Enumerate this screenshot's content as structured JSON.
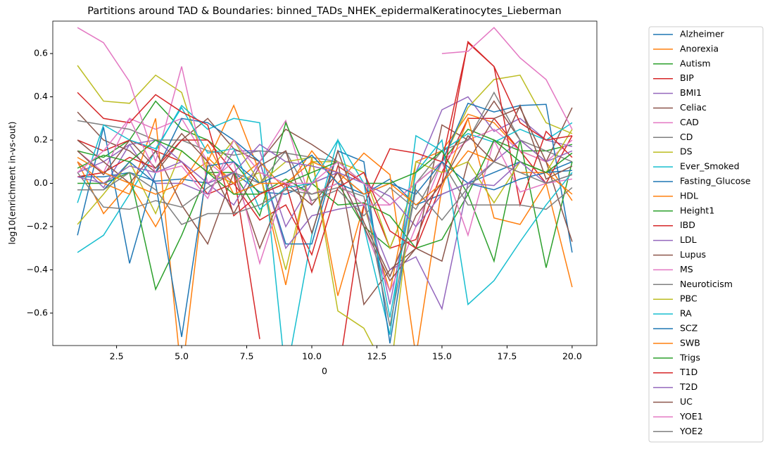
{
  "chart_data": {
    "type": "line",
    "title": "Partitions around TAD & Boundaries: binned_TADs_NHEK_epidermalKeratinocytes_Lieberman",
    "x_label": "0",
    "y_label": "log10(enrichment in-vs-out)",
    "x": [
      1,
      2,
      3,
      4,
      5,
      6,
      7,
      8,
      9,
      10,
      11,
      12,
      13,
      14,
      15,
      16,
      17,
      18,
      19,
      20
    ],
    "xlim": [
      0.05,
      20.95
    ],
    "xticks": [
      2.5,
      {
        "value": 5,
        "label": "5.0"
      },
      7.5,
      {
        "value": 10,
        "label": "10.0"
      },
      12.5,
      {
        "value": 15,
        "label": "15.0"
      },
      17.5,
      {
        "value": 20,
        "label": "20.0"
      }
    ],
    "ylim": [
      -0.75,
      0.75
    ],
    "yticks": [
      {
        "value": -0.6,
        "label": "−0.6"
      },
      {
        "value": -0.4,
        "label": "−0.4"
      },
      {
        "value": -0.2,
        "label": "−0.2"
      },
      {
        "value": 0,
        "label": "0.0"
      },
      0.2,
      0.4,
      0.6
    ],
    "grid": false,
    "legend": "outside right",
    "series": [
      {
        "name": "Alzheimer",
        "color": "#1f77b4",
        "values": [
          0.03,
          0.03,
          0.05,
          0.01,
          0.02,
          0.0,
          0.05,
          -0.04,
          -0.05,
          0.0,
          0.05,
          -0.05,
          0.02,
          -0.1,
          -0.05,
          0.0,
          0.05,
          0.1,
          0.05,
          0.1
        ]
      },
      {
        "name": "Anorexia",
        "color": "#ff7f0e",
        "values": [
          0.1,
          -0.14,
          0.0,
          -0.2,
          0.02,
          0.1,
          0.36,
          0.05,
          -0.47,
          0.12,
          -0.52,
          -0.1,
          -0.5,
          0.1,
          0.15,
          0.32,
          0.28,
          0.15,
          0.1,
          -0.08
        ]
      },
      {
        "name": "Autism",
        "color": "#2ca02c",
        "values": [
          0.15,
          0.12,
          0.2,
          0.38,
          0.25,
          0.2,
          0.1,
          -0.05,
          0.02,
          -0.05,
          0.0,
          -0.2,
          -0.3,
          0.0,
          0.1,
          0.25,
          0.2,
          0.15,
          0.15,
          0.18
        ]
      },
      {
        "name": "BIP",
        "color": "#d62728",
        "values": [
          0.2,
          0.15,
          0.2,
          0.15,
          0.1,
          -0.05,
          0.0,
          -0.17,
          -0.1,
          -0.33,
          0.08,
          0.0,
          -0.3,
          -0.26,
          0.05,
          0.3,
          0.3,
          0.15,
          0.0,
          0.22
        ]
      },
      {
        "name": "BMI1",
        "color": "#9467bd",
        "values": [
          0.1,
          -0.02,
          0.18,
          0.0,
          0.0,
          -0.05,
          0.15,
          0.15,
          -0.2,
          0.0,
          0.05,
          0.0,
          -0.56,
          0.05,
          0.34,
          0.4,
          0.24,
          0.3,
          0.2,
          0.17
        ]
      },
      {
        "name": "Celiac",
        "color": "#8c564b",
        "values": [
          0.33,
          0.2,
          0.15,
          0.05,
          0.2,
          0.3,
          0.16,
          0.1,
          0.25,
          0.18,
          0.1,
          -0.56,
          -0.4,
          -0.3,
          0.27,
          0.2,
          0.38,
          0.2,
          0.1,
          0.35
        ]
      },
      {
        "name": "CAD",
        "color": "#e377c2",
        "values": [
          0.15,
          0.05,
          0.3,
          0.25,
          0.3,
          0.1,
          0.0,
          0.1,
          0.29,
          -0.1,
          0.05,
          -0.2,
          -0.5,
          -0.2,
          0.1,
          0.2,
          0.25,
          0.15,
          0.1,
          0.2
        ]
      },
      {
        "name": "CD",
        "color": "#7f7f7f",
        "values": [
          0.29,
          0.27,
          0.25,
          0.2,
          0.2,
          0.15,
          0.13,
          0.15,
          0.14,
          0.12,
          0.1,
          0.0,
          -0.1,
          0.0,
          0.15,
          0.2,
          0.42,
          0.2,
          0.15,
          0.1
        ]
      },
      {
        "name": "DS",
        "color": "#bcbd22",
        "values": [
          0.545,
          0.38,
          0.37,
          0.5,
          0.42,
          0.05,
          0.0,
          0.05,
          -0.4,
          0.1,
          0.1,
          0.05,
          -0.3,
          0.0,
          0.1,
          0.35,
          0.48,
          0.5,
          0.28,
          0.23
        ]
      },
      {
        "name": "Ever_Smoked",
        "color": "#17becf",
        "values": [
          -0.32,
          -0.24,
          -0.05,
          0.15,
          0.36,
          0.25,
          0.3,
          0.28,
          -0.9,
          -0.24,
          0.2,
          -0.2,
          -0.7,
          0.22,
          0.15,
          0.23,
          0.19,
          0.25,
          0.2,
          0.28
        ]
      },
      {
        "name": "Fasting_Glucose",
        "color": "#1f77b4",
        "values": [
          -0.24,
          0.26,
          -0.37,
          0.05,
          0.3,
          0.28,
          0.2,
          0.1,
          -0.28,
          -0.28,
          0.15,
          0.1,
          -0.74,
          0.0,
          0.1,
          0.37,
          0.33,
          0.36,
          0.365,
          -0.32
        ]
      },
      {
        "name": "HDL",
        "color": "#ff7f0e",
        "values": [
          0.1,
          0.0,
          -0.05,
          0.3,
          -0.9,
          0.12,
          0.0,
          0.1,
          -0.03,
          0.15,
          0.0,
          0.14,
          0.04,
          -0.8,
          -0.02,
          0.3,
          -0.16,
          -0.19,
          0.0,
          -0.48
        ]
      },
      {
        "name": "Height1",
        "color": "#2ca02c",
        "values": [
          0.0,
          0.0,
          0.05,
          -0.49,
          -0.24,
          0.05,
          0.05,
          -0.15,
          0.28,
          0.0,
          -0.1,
          -0.09,
          -0.15,
          -0.3,
          -0.26,
          -0.05,
          -0.36,
          0.2,
          -0.39,
          0.1
        ]
      },
      {
        "name": "IBD",
        "color": "#d62728",
        "values": [
          0.03,
          0.05,
          0.12,
          0.07,
          0.2,
          0.2,
          0.05,
          -0.72,
          null,
          null,
          -0.9,
          -0.1,
          0.16,
          0.14,
          0.1,
          0.65,
          0.54,
          -0.1,
          0.24,
          0.12
        ]
      },
      {
        "name": "LDL",
        "color": "#9467bd",
        "values": [
          0.05,
          0.1,
          0.18,
          0.2,
          0.1,
          0.0,
          -0.1,
          0.1,
          -0.3,
          -0.15,
          -0.12,
          -0.1,
          -0.4,
          -0.34,
          -0.58,
          0.0,
          0.1,
          0.2,
          0.1,
          0.15
        ]
      },
      {
        "name": "Lupus",
        "color": "#8c564b",
        "values": [
          0.2,
          0.1,
          0.0,
          0.15,
          -0.1,
          -0.28,
          0.05,
          -0.3,
          0.0,
          -0.1,
          0.05,
          -0.2,
          -0.45,
          -0.3,
          -0.36,
          0.1,
          0.3,
          0.35,
          0.1,
          -0.27
        ]
      },
      {
        "name": "MS",
        "color": "#e377c2",
        "values": [
          0.72,
          0.65,
          0.47,
          0.1,
          0.54,
          0.0,
          0.1,
          -0.37,
          0.0,
          -0.05,
          0.0,
          -0.1,
          -0.1,
          0.0,
          0.1,
          -0.24,
          0.2,
          -0.04,
          0.0,
          0.02
        ]
      },
      {
        "name": "Neuroticism",
        "color": "#7f7f7f",
        "values": [
          0.05,
          -0.11,
          -0.12,
          -0.08,
          -0.11,
          -0.02,
          0.05,
          0.0,
          0.15,
          -0.08,
          -0.03,
          -0.15,
          -0.02,
          -0.12,
          0.1,
          -0.1,
          -0.1,
          -0.1,
          -0.12,
          -0.02
        ]
      },
      {
        "name": "PBC",
        "color": "#bcbd22",
        "values": [
          -0.19,
          -0.05,
          0.1,
          -0.14,
          0.15,
          0.05,
          0.2,
          0.0,
          0.1,
          0.12,
          -0.59,
          -0.67,
          -0.9,
          0.1,
          0.05,
          0.1,
          -0.09,
          0.1,
          0.05,
          0.25
        ]
      },
      {
        "name": "RA",
        "color": "#17becf",
        "values": [
          -0.09,
          0.27,
          0.2,
          0.16,
          0.35,
          0.14,
          0.16,
          -0.12,
          -0.02,
          0.0,
          0.2,
          0.0,
          -0.62,
          0.05,
          0.2,
          -0.56,
          -0.45,
          -0.27,
          -0.1,
          0.05
        ]
      },
      {
        "name": "SCZ",
        "color": "#1f77b4",
        "values": [
          -0.03,
          -0.03,
          0.1,
          0.0,
          -0.71,
          0.08,
          0.1,
          0.0,
          0.05,
          0.13,
          0.0,
          -0.05,
          0.0,
          -0.05,
          0.1,
          0.0,
          -0.03,
          0.02,
          0.05,
          0.06
        ]
      },
      {
        "name": "SWB",
        "color": "#ff7f0e",
        "values": [
          0.12,
          0.05,
          0.0,
          -0.05,
          0.0,
          0.18,
          -0.05,
          0.0,
          0.0,
          0.1,
          0.05,
          -0.05,
          0.0,
          -0.1,
          0.0,
          0.15,
          0.1,
          0.05,
          0.05,
          -0.05
        ]
      },
      {
        "name": "Trigs",
        "color": "#2ca02c",
        "values": [
          0.07,
          0.13,
          0.1,
          0.2,
          0.15,
          0.05,
          -0.05,
          -0.05,
          0.0,
          0.05,
          0.1,
          0.0,
          0.0,
          0.05,
          0.15,
          -0.05,
          0.2,
          0.1,
          0.05,
          0.14
        ]
      },
      {
        "name": "T1D",
        "color": "#d62728",
        "values": [
          0.42,
          0.3,
          0.28,
          0.41,
          0.33,
          0.27,
          -0.15,
          -0.05,
          0.0,
          -0.41,
          -0.02,
          0.05,
          -0.22,
          -0.3,
          0.0,
          0.655,
          0.54,
          0.28,
          0.2,
          0.22
        ]
      },
      {
        "name": "T2D",
        "color": "#9467bd",
        "values": [
          0.03,
          0.0,
          0.08,
          0.05,
          0.1,
          0.0,
          0.05,
          0.18,
          0.1,
          0.08,
          0.05,
          0.0,
          -0.06,
          -0.2,
          -0.05,
          0.0,
          -0.01,
          0.1,
          0.0,
          0.04
        ]
      },
      {
        "name": "UC",
        "color": "#8c564b",
        "values": [
          0.15,
          0.04,
          0.2,
          0.07,
          0.23,
          0.1,
          -0.14,
          0.08,
          0.15,
          -0.23,
          0.15,
          -0.18,
          -0.43,
          -0.15,
          0.0,
          0.22,
          0.1,
          0.36,
          0.02,
          0.08
        ]
      },
      {
        "name": "YOE1",
        "color": "#e377c2",
        "values": [
          0.05,
          0.15,
          0.3,
          0.05,
          0.08,
          -0.07,
          0.2,
          0.05,
          0.0,
          0.0,
          0.1,
          0.0,
          -0.1,
          null,
          0.6,
          0.61,
          0.72,
          0.58,
          0.48,
          0.25
        ]
      },
      {
        "name": "YOE2",
        "color": "#7f7f7f",
        "values": [
          -0.03,
          -0.03,
          0.05,
          -0.03,
          -0.19,
          -0.14,
          -0.14,
          -0.1,
          -0.03,
          -0.05,
          -0.02,
          -0.06,
          -0.66,
          -0.03,
          -0.17,
          -0.02,
          0.1,
          0.05,
          0.0,
          0.04
        ]
      }
    ]
  }
}
